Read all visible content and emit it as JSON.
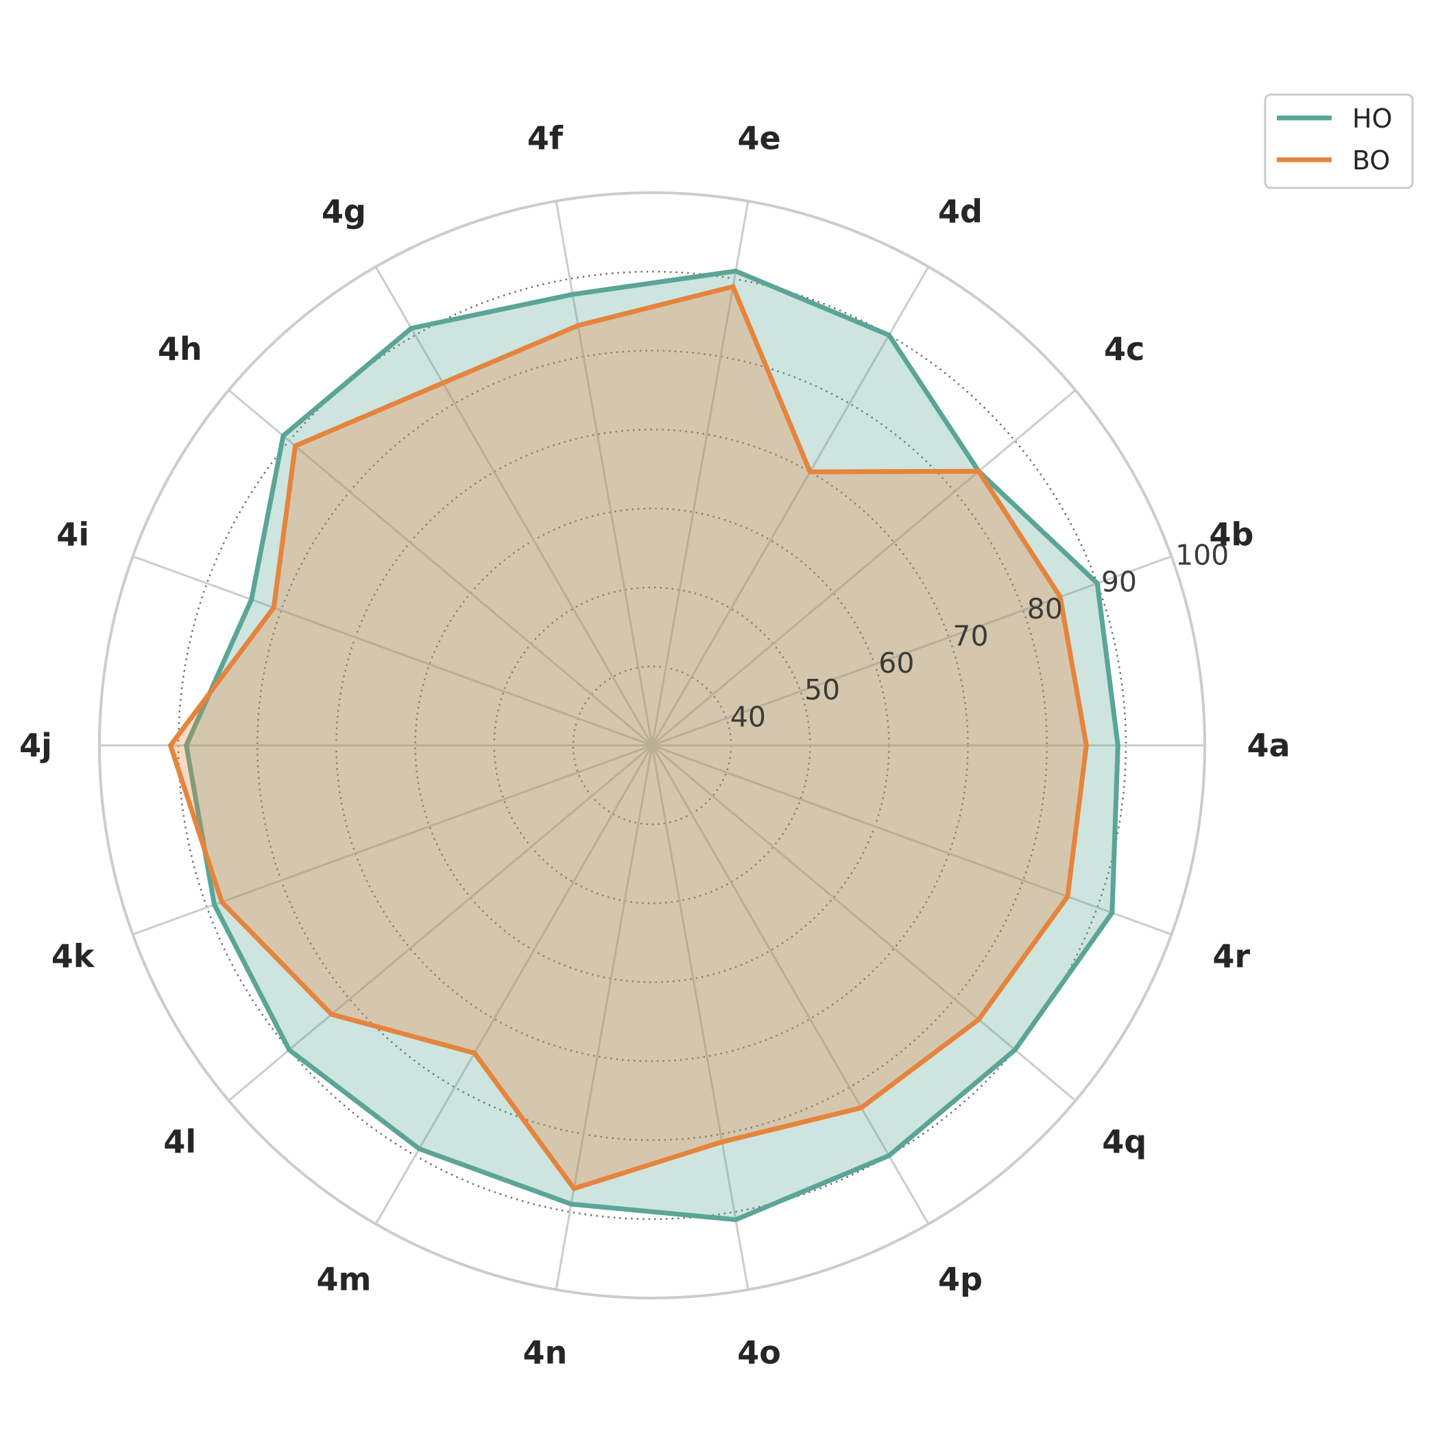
{
  "chart_data": {
    "type": "radar",
    "categories": [
      "4a",
      "4b",
      "4c",
      "4d",
      "4e",
      "4f",
      "4g",
      "4h",
      "4i",
      "4j",
      "4k",
      "4l",
      "4m",
      "4n",
      "4o",
      "4p",
      "4q",
      "4r"
    ],
    "series": [
      {
        "name": "HO",
        "color": "#5aa596",
        "values": [
          89,
          90,
          84,
          90,
          91,
          88,
          91,
          91,
          84,
          89,
          89,
          90,
          89,
          89,
          91,
          90,
          90,
          92
        ]
      },
      {
        "name": "BO",
        "color": "#e6843d",
        "values": [
          85,
          85,
          84,
          70,
          89,
          84,
          83,
          89,
          81,
          91,
          88,
          83,
          75,
          87,
          81,
          83,
          84,
          86
        ]
      }
    ],
    "r_ticks": [
      40,
      50,
      60,
      70,
      80,
      90,
      100
    ],
    "r_range": [
      30,
      100
    ],
    "grid": true,
    "legend_position": "top-right"
  }
}
